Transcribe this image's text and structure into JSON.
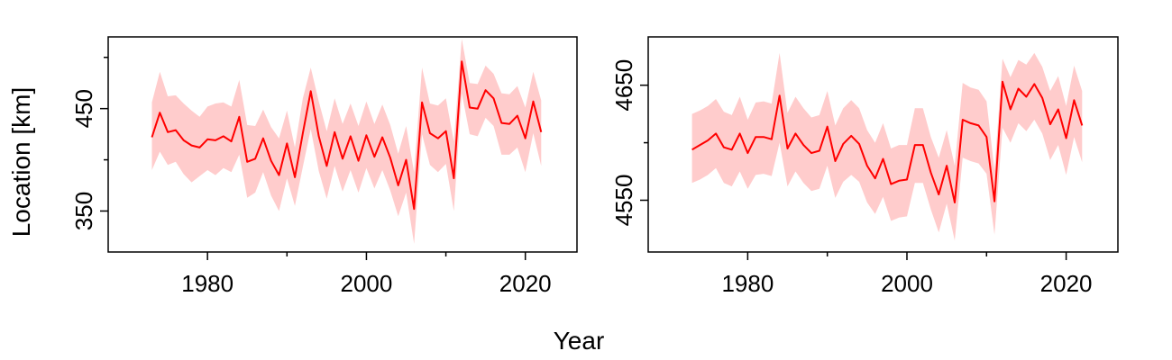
{
  "figure": {
    "xlabel": "Year",
    "ylabel": "Location [km]"
  },
  "colors": {
    "line": "#ff0000",
    "band": "#ffcccc",
    "axis": "#000000"
  },
  "chart_data": [
    {
      "type": "line",
      "x": [
        1973,
        1974,
        1975,
        1976,
        1977,
        1978,
        1979,
        1980,
        1981,
        1982,
        1983,
        1984,
        1985,
        1986,
        1987,
        1988,
        1989,
        1990,
        1991,
        1992,
        1993,
        1994,
        1995,
        1996,
        1997,
        1998,
        1999,
        2000,
        2001,
        2002,
        2003,
        2004,
        2005,
        2006,
        2007,
        2008,
        2009,
        2010,
        2011,
        2012,
        2013,
        2014,
        2015,
        2016,
        2017,
        2018,
        2019,
        2020,
        2021,
        2022
      ],
      "series": [
        {
          "values": [
            422,
            446,
            427,
            429,
            419,
            414,
            412,
            420,
            419,
            423,
            418,
            442,
            398,
            401,
            421,
            399,
            385,
            416,
            383,
            426,
            467,
            423,
            394,
            427,
            401,
            423,
            399,
            424,
            403,
            422,
            402,
            375,
            400,
            352,
            456,
            426,
            421,
            428,
            382,
            496,
            451,
            450,
            468,
            460,
            436,
            435,
            443,
            421,
            457,
            427
          ],
          "lower": [
            390,
            408,
            395,
            398,
            386,
            378,
            384,
            390,
            385,
            392,
            388,
            405,
            363,
            368,
            388,
            365,
            350,
            382,
            355,
            393,
            430,
            389,
            362,
            394,
            369,
            390,
            368,
            392,
            372,
            390,
            370,
            345,
            368,
            318,
            425,
            395,
            388,
            396,
            350,
            465,
            425,
            423,
            441,
            433,
            405,
            405,
            412,
            388,
            426,
            394
          ],
          "upper": [
            456,
            486,
            462,
            463,
            455,
            448,
            442,
            452,
            455,
            456,
            452,
            478,
            434,
            433,
            449,
            432,
            421,
            448,
            412,
            460,
            490,
            457,
            428,
            460,
            435,
            455,
            433,
            457,
            435,
            454,
            434,
            406,
            433,
            388,
            490,
            455,
            453,
            460,
            418,
            518,
            475,
            474,
            492,
            484,
            465,
            464,
            472,
            451,
            486,
            458
          ]
        }
      ],
      "xlim": [
        1967.5,
        2026.5
      ],
      "ylim": [
        310,
        520
      ],
      "xticks": [
        1980,
        2000,
        2020
      ],
      "xticks_minor": [
        1990,
        2010
      ],
      "yticks": [
        350,
        450
      ],
      "yticks_minor": [
        400,
        500
      ]
    },
    {
      "type": "line",
      "x": [
        1973,
        1974,
        1975,
        1976,
        1977,
        1978,
        1979,
        1980,
        1981,
        1982,
        1983,
        1984,
        1985,
        1986,
        1987,
        1988,
        1989,
        1990,
        1991,
        1992,
        1993,
        1994,
        1995,
        1996,
        1997,
        1998,
        1999,
        2000,
        2001,
        2002,
        2003,
        2004,
        2005,
        2006,
        2007,
        2008,
        2009,
        2010,
        2011,
        2012,
        2013,
        2014,
        2015,
        2016,
        2017,
        2018,
        2019,
        2020,
        2021,
        2022
      ],
      "series": [
        {
          "values": [
            4594,
            4598,
            4602,
            4608,
            4596,
            4594,
            4608,
            4591,
            4605,
            4605,
            4603,
            4641,
            4595,
            4608,
            4598,
            4591,
            4593,
            4614,
            4584,
            4599,
            4606,
            4599,
            4580,
            4569,
            4586,
            4564,
            4567,
            4568,
            4598,
            4598,
            4574,
            4555,
            4580,
            4548,
            4620,
            4617,
            4615,
            4605,
            4549,
            4653,
            4629,
            4647,
            4640,
            4651,
            4639,
            4616,
            4629,
            4604,
            4637,
            4615
          ],
          "lower": [
            4565,
            4568,
            4572,
            4578,
            4565,
            4562,
            4575,
            4560,
            4572,
            4573,
            4571,
            4600,
            4562,
            4575,
            4565,
            4558,
            4560,
            4580,
            4552,
            4566,
            4572,
            4566,
            4548,
            4538,
            4553,
            4532,
            4535,
            4536,
            4565,
            4565,
            4542,
            4522,
            4547,
            4515,
            4587,
            4584,
            4582,
            4573,
            4520,
            4613,
            4600,
            4617,
            4610,
            4620,
            4608,
            4585,
            4598,
            4572,
            4605,
            4583
          ],
          "upper": [
            4625,
            4628,
            4632,
            4638,
            4627,
            4624,
            4640,
            4620,
            4635,
            4636,
            4634,
            4678,
            4626,
            4640,
            4630,
            4622,
            4624,
            4645,
            4615,
            4630,
            4637,
            4630,
            4611,
            4600,
            4617,
            4595,
            4598,
            4598,
            4630,
            4630,
            4605,
            4587,
            4611,
            4580,
            4652,
            4648,
            4646,
            4636,
            4576,
            4673,
            4657,
            4672,
            4668,
            4678,
            4666,
            4645,
            4658,
            4632,
            4667,
            4645
          ]
        }
      ],
      "xlim": [
        1967.5,
        2026.5
      ],
      "ylim": [
        4505,
        4692
      ],
      "xticks": [
        1980,
        2000,
        2020
      ],
      "xticks_minor": [
        1990,
        2010
      ],
      "yticks": [
        4550,
        4650
      ],
      "yticks_minor": [
        4600
      ]
    }
  ]
}
